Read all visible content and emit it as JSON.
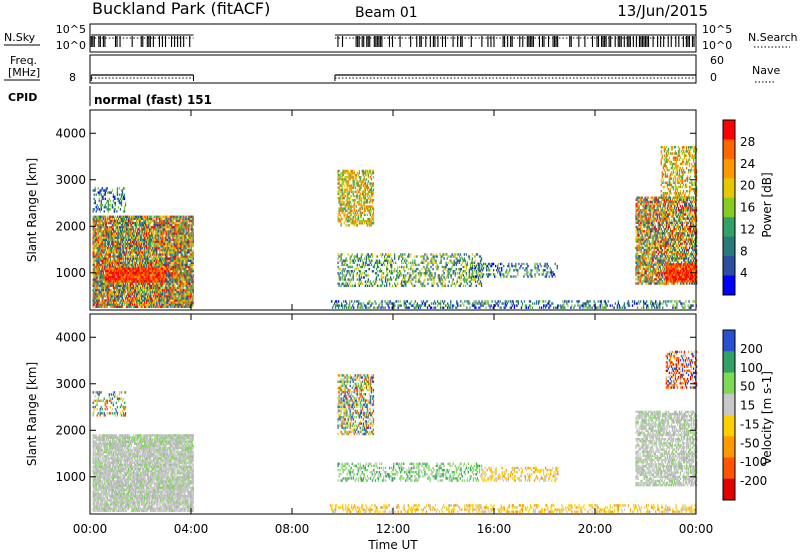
{
  "header": {
    "station": "Buckland Park (fitACF)",
    "beam": "Beam 01",
    "date": "13/Jun/2015"
  },
  "side_labels": {
    "nsky": "N.Sky",
    "nsearch": "N.Search",
    "freq_line1": "Freq.",
    "freq_line2": "[MHz]",
    "nave": "Nave",
    "cpid": "CPID",
    "cpid_value": "normal (fast) 151"
  },
  "noise_axis": {
    "left": [
      "10^5",
      "10^0"
    ],
    "right": [
      "10^5",
      "10^0"
    ]
  },
  "freq_axis": {
    "left": [
      "8"
    ],
    "right": [
      "60",
      "0"
    ]
  },
  "x_axis": {
    "label": "Time UT",
    "ticks": [
      "00:00",
      "04:00",
      "08:00",
      "12:00",
      "16:00",
      "20:00",
      "00:00"
    ]
  },
  "chart_data": [
    {
      "type": "heatmap",
      "panel": "power",
      "ylabel": "Slant Range [km]",
      "yticks": [
        1000,
        2000,
        3000,
        4000
      ],
      "ylim": [
        200,
        4500
      ],
      "xlim_hours": [
        0,
        24
      ],
      "colorbar_label": "Power [dB]",
      "colorbar_ticks": [
        "28",
        "24",
        "20",
        "16",
        "12",
        "8",
        "4"
      ],
      "colorbar_colors": [
        "#ff0000",
        "#ff6600",
        "#ff9900",
        "#e6c800",
        "#88cc22",
        "#33a066",
        "#2a7a7a",
        "#2a4fa0",
        "#0000ff"
      ],
      "regions": [
        {
          "t0": 0.1,
          "t1": 4.1,
          "r0": 250,
          "r1": 2200,
          "density": 0.85,
          "level": "mixed_high"
        },
        {
          "t0": 0.6,
          "t1": 3.0,
          "r0": 800,
          "r1": 1100,
          "density": 0.95,
          "level": "high"
        },
        {
          "t0": 0.1,
          "t1": 1.4,
          "r0": 2300,
          "r1": 2800,
          "density": 0.35,
          "level": "low"
        },
        {
          "t0": 9.8,
          "t1": 11.2,
          "r0": 2000,
          "r1": 3200,
          "density": 0.55,
          "level": "mid"
        },
        {
          "t0": 9.8,
          "t1": 15.5,
          "r0": 700,
          "r1": 1400,
          "density": 0.35,
          "level": "mixed_low"
        },
        {
          "t0": 15.0,
          "t1": 18.5,
          "r0": 900,
          "r1": 1200,
          "density": 0.3,
          "level": "low"
        },
        {
          "t0": 21.6,
          "t1": 24,
          "r0": 750,
          "r1": 2600,
          "density": 0.7,
          "level": "mixed_high"
        },
        {
          "t0": 22.8,
          "t1": 24,
          "r0": 800,
          "r1": 1200,
          "density": 0.95,
          "level": "high"
        },
        {
          "t0": 22.6,
          "t1": 24,
          "r0": 2600,
          "r1": 3700,
          "density": 0.45,
          "level": "mid"
        },
        {
          "t0": 9.5,
          "t1": 24,
          "r0": 230,
          "r1": 400,
          "density": 0.35,
          "level": "low"
        }
      ]
    },
    {
      "type": "heatmap",
      "panel": "velocity",
      "ylabel": "Slant Range [km]",
      "yticks": [
        1000,
        2000,
        3000,
        4000
      ],
      "ylim": [
        200,
        4500
      ],
      "xlim_hours": [
        0,
        24
      ],
      "colorbar_label": "Velocity [m s-1]",
      "colorbar_ticks": [
        "200",
        "100",
        "50",
        "15",
        "-15",
        "-50",
        "-100",
        "-200"
      ],
      "colorbar_colors": [
        "#2a4fd0",
        "#33a066",
        "#7ed957",
        "#c8c8c8",
        "#ffd000",
        "#ff9900",
        "#ff5500",
        "#e00000"
      ],
      "regions": [
        {
          "t0": 0.1,
          "t1": 4.1,
          "r0": 250,
          "r1": 1900,
          "density": 0.85,
          "level": "gray"
        },
        {
          "t0": 0.1,
          "t1": 1.4,
          "r0": 2300,
          "r1": 2800,
          "density": 0.3,
          "level": "mixed"
        },
        {
          "t0": 9.8,
          "t1": 11.2,
          "r0": 1900,
          "r1": 3200,
          "density": 0.5,
          "level": "mixed"
        },
        {
          "t0": 9.8,
          "t1": 15.5,
          "r0": 900,
          "r1": 1300,
          "density": 0.35,
          "level": "green"
        },
        {
          "t0": 15.5,
          "t1": 18.5,
          "r0": 900,
          "r1": 1200,
          "density": 0.35,
          "level": "yellow"
        },
        {
          "t0": 21.6,
          "t1": 24,
          "r0": 800,
          "r1": 2400,
          "density": 0.65,
          "level": "gray"
        },
        {
          "t0": 22.8,
          "t1": 24,
          "r0": 2900,
          "r1": 3700,
          "density": 0.45,
          "level": "red"
        },
        {
          "t0": 9.5,
          "t1": 24,
          "r0": 230,
          "r1": 400,
          "density": 0.35,
          "level": "yellow"
        }
      ]
    }
  ]
}
